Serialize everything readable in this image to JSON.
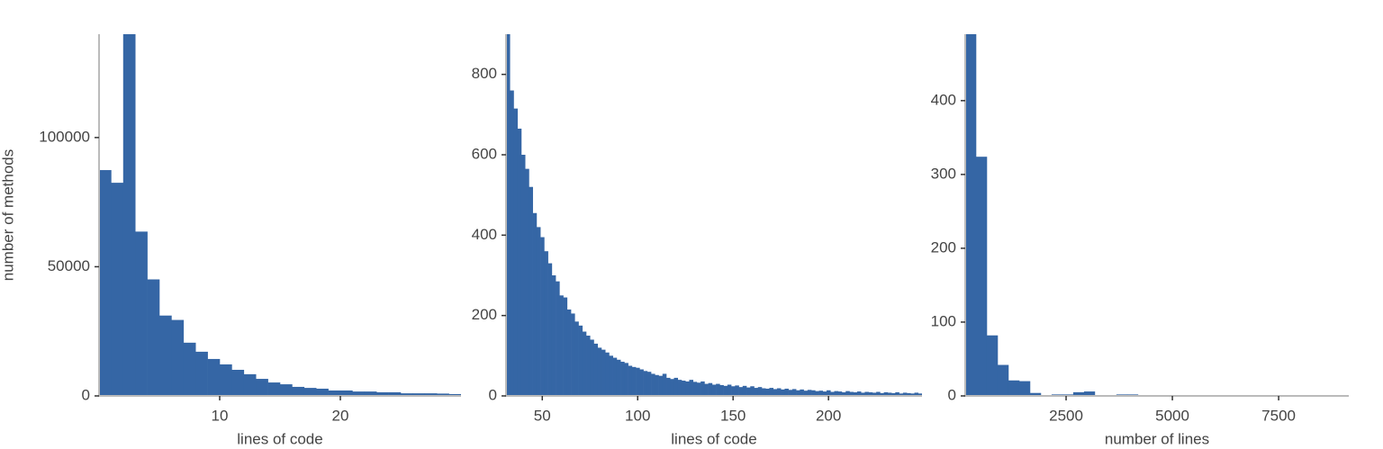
{
  "chart_data": [
    {
      "type": "histogram",
      "xlabel": "lines of code",
      "ylabel": "number of methods",
      "color": "#3566a5",
      "bins": [
        0,
        1,
        2,
        3,
        4,
        5,
        6,
        7,
        8,
        9,
        10,
        11,
        12,
        13,
        14,
        15,
        16,
        17,
        18,
        19,
        20,
        21,
        22,
        23,
        24,
        25,
        26,
        27,
        28,
        29,
        30
      ],
      "values": [
        87400,
        82500,
        150000,
        63600,
        45100,
        31100,
        29400,
        20600,
        17100,
        14300,
        12200,
        10100,
        8400,
        6600,
        5200,
        4500,
        3500,
        3100,
        2800,
        2100,
        2100,
        1700,
        1700,
        1400,
        1400,
        1000,
        1000,
        1000,
        900,
        700
      ],
      "xlim": [
        0,
        30
      ],
      "xticks": [
        10,
        20
      ],
      "ylim": [
        0,
        140000
      ],
      "yticks": [
        0,
        50000,
        100000
      ]
    },
    {
      "type": "histogram",
      "xlabel": "lines of code",
      "color": "#3566a5",
      "bins": [
        31,
        33,
        35,
        37,
        39,
        41,
        43,
        45,
        47,
        49,
        51,
        53,
        55,
        57,
        59,
        61,
        63,
        65,
        67,
        69,
        71,
        73,
        75,
        77,
        79,
        81,
        83,
        85,
        87,
        89,
        91,
        93,
        95,
        97,
        99,
        101,
        103,
        105,
        107,
        109,
        111,
        113,
        115,
        117,
        119,
        121,
        123,
        125,
        127,
        129,
        131,
        133,
        135,
        137,
        139,
        141,
        143,
        145,
        147,
        149,
        151,
        153,
        155,
        157,
        159,
        161,
        163,
        165,
        167,
        169,
        171,
        173,
        175,
        177,
        179,
        181,
        183,
        185,
        187,
        189,
        191,
        193,
        195,
        197,
        199,
        201,
        203,
        205,
        207,
        209,
        211,
        213,
        215,
        217,
        219,
        221,
        223,
        225,
        227,
        229,
        231,
        233,
        235,
        237,
        239,
        241,
        243,
        245,
        247,
        249
      ],
      "values": [
        950,
        760,
        715,
        665,
        600,
        565,
        520,
        455,
        420,
        395,
        360,
        330,
        300,
        285,
        250,
        245,
        215,
        205,
        185,
        175,
        160,
        150,
        140,
        130,
        120,
        115,
        108,
        100,
        95,
        90,
        85,
        82,
        75,
        72,
        70,
        66,
        62,
        60,
        55,
        52,
        50,
        55,
        45,
        42,
        45,
        40,
        38,
        36,
        40,
        35,
        33,
        36,
        30,
        32,
        28,
        30,
        27,
        25,
        28,
        24,
        26,
        22,
        25,
        21,
        24,
        20,
        22,
        19,
        18,
        20,
        17,
        19,
        16,
        18,
        15,
        17,
        14,
        16,
        13,
        15,
        14,
        12,
        13,
        11,
        14,
        10,
        12,
        11,
        9,
        12,
        10,
        9,
        11,
        8,
        10,
        9,
        8,
        10,
        7,
        9,
        8,
        7,
        9,
        6,
        8,
        7,
        6,
        8,
        6
      ],
      "xlim": [
        31,
        249
      ],
      "xticks": [
        50,
        100,
        150,
        200
      ],
      "ylim": [
        0,
        900
      ],
      "yticks": [
        0,
        200,
        400,
        600,
        800
      ]
    },
    {
      "type": "histogram",
      "xlabel": "number of lines",
      "color": "#3566a5",
      "bins": [
        127,
        381,
        635,
        889,
        1143,
        1397,
        1651,
        1905,
        2159,
        2413,
        2667,
        2921,
        3175,
        3429,
        3683,
        3937,
        4191,
        4445,
        4699,
        4953,
        5207,
        5461,
        5715,
        5969,
        6223,
        6477,
        6731,
        6985,
        7239,
        7493,
        7747,
        8001,
        8255,
        8509,
        8763,
        9017
      ],
      "values": [
        530,
        324,
        82,
        42,
        21,
        20,
        4,
        1,
        2,
        2,
        5,
        6,
        1,
        1,
        2,
        2,
        0,
        0,
        1,
        0,
        0,
        0,
        0,
        0,
        0,
        0,
        0,
        0,
        0,
        0,
        0,
        0,
        0,
        0,
        0
      ],
      "xlim": [
        127,
        9150
      ],
      "xticks": [
        2500,
        5000,
        7500
      ],
      "ylim": [
        0,
        490
      ],
      "yticks": [
        0,
        100,
        200,
        300,
        400
      ]
    }
  ]
}
